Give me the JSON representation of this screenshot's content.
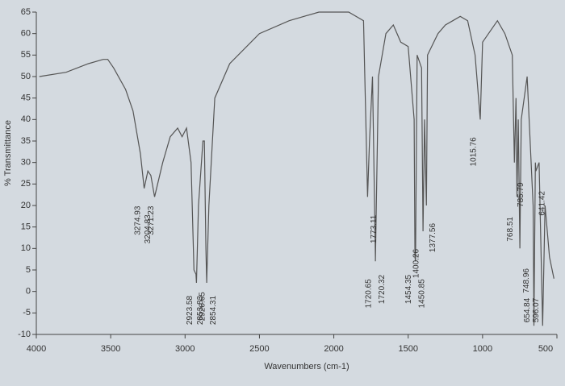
{
  "chart_data": {
    "type": "line",
    "xlabel": "Wavenumbers (cm-1)",
    "ylabel": "% Transmittance",
    "color": "#555555",
    "xlim": [
      4000,
      500
    ],
    "ylim": [
      -10,
      65
    ],
    "xticks": [
      4000,
      3500,
      3000,
      2500,
      2000,
      1500,
      1000,
      500
    ],
    "yticks": [
      -10,
      -5,
      0,
      5,
      10,
      15,
      20,
      25,
      30,
      35,
      40,
      45,
      50,
      55,
      60,
      65
    ],
    "x": [
      3980,
      3800,
      3650,
      3550,
      3520,
      3480,
      3400,
      3350,
      3300,
      3274.93,
      3250,
      3230,
      3204.83,
      3150,
      3100,
      3050,
      3020,
      2990,
      2960,
      2940,
      2926.65,
      2923.58,
      2910,
      2880,
      2870,
      2860,
      2854.31,
      2853.83,
      2840,
      2800,
      2700,
      2500,
      2300,
      2100,
      1900,
      1800,
      1773.11,
      1760,
      1740,
      1720.32,
      1720.65,
      1700,
      1650,
      1600,
      1550,
      1500,
      1460,
      1454.35,
      1450.85,
      1440,
      1410,
      1400.26,
      1390,
      1377.56,
      1370,
      1300,
      1250,
      1200,
      1150,
      1100,
      1050,
      1015.76,
      1000,
      900,
      850,
      800,
      785.79,
      775,
      768.51,
      760,
      748.96,
      740,
      700,
      660,
      654.84,
      645,
      641.42,
      620,
      596.07,
      580,
      550,
      520
    ],
    "y": [
      50,
      51,
      53,
      54,
      54,
      52,
      47,
      42,
      32,
      24,
      28,
      27,
      22,
      30,
      36,
      38,
      36,
      38,
      30,
      5,
      4,
      2,
      20,
      35,
      35,
      10,
      2,
      3,
      20,
      45,
      53,
      60,
      63,
      65,
      65,
      63,
      22,
      35,
      50,
      8,
      7,
      50,
      60,
      62,
      58,
      57,
      40,
      8,
      7,
      55,
      52,
      14,
      40,
      20,
      55,
      60,
      62,
      63,
      64,
      63,
      55,
      40,
      58,
      63,
      60,
      55,
      30,
      45,
      22,
      40,
      10,
      40,
      50,
      20,
      -8,
      30,
      28,
      30,
      -8,
      20,
      8,
      3
    ],
    "peaks": [
      3274.93,
      3271.23,
      3204.83,
      2926.65,
      2923.58,
      2854.31,
      2853.83,
      1773.11,
      1720.65,
      1720.32,
      1454.35,
      1450.85,
      1400.26,
      1377.56,
      1015.76,
      785.79,
      768.51,
      748.96,
      654.84,
      641.42,
      596.07
    ]
  }
}
